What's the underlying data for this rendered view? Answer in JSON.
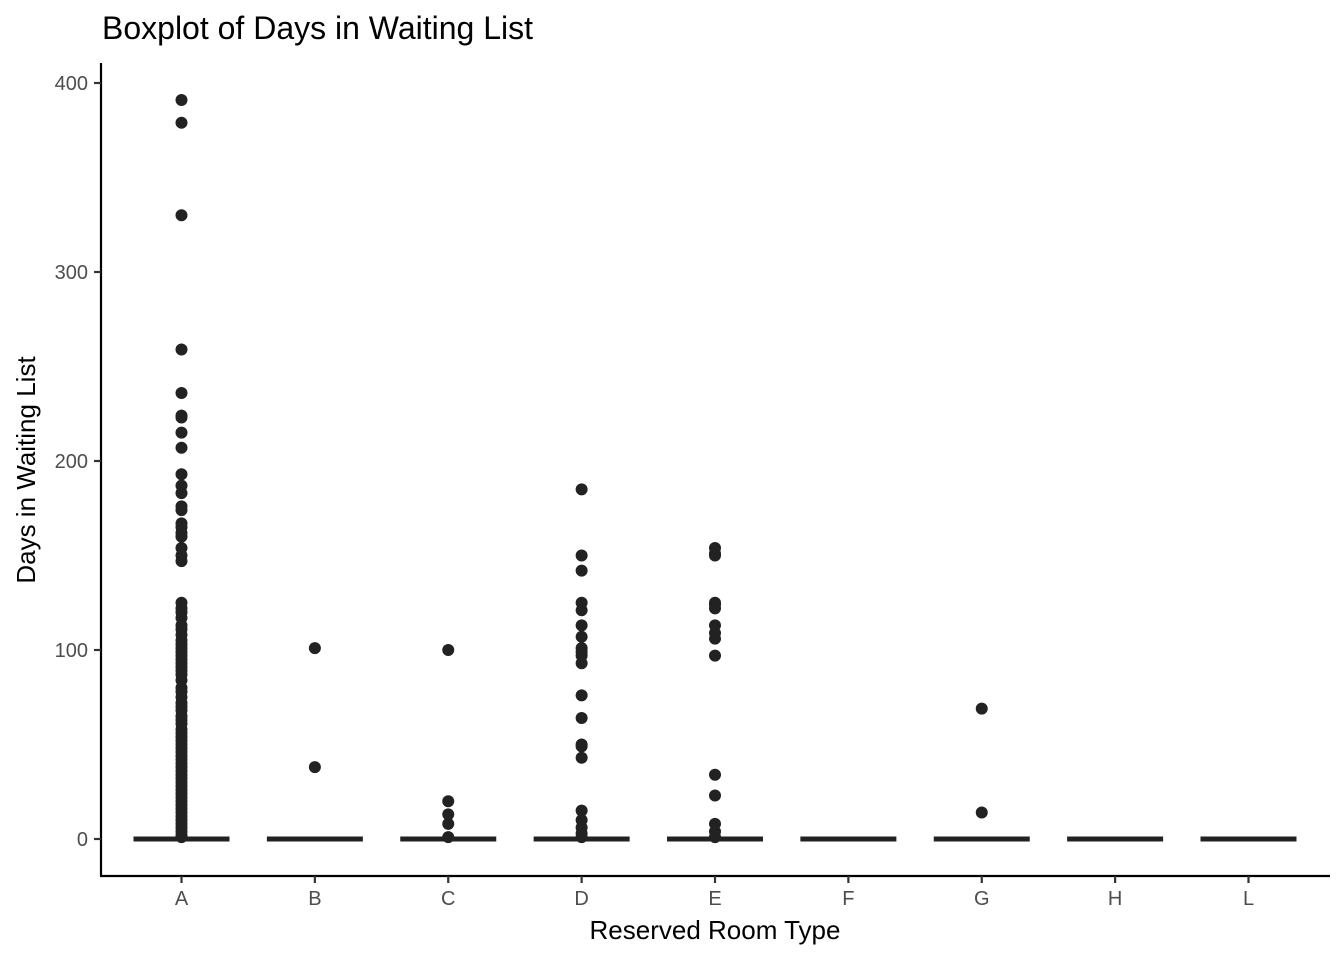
{
  "chart_data": {
    "type": "boxplot",
    "title": "Boxplot of Days in Waiting List",
    "xlabel": "Reserved Room Type",
    "ylabel": "Days in Waiting List",
    "ylim": [
      -19,
      410
    ],
    "yticks": [
      0,
      100,
      200,
      300,
      400
    ],
    "categories": [
      "A",
      "B",
      "C",
      "D",
      "E",
      "F",
      "G",
      "H",
      "L"
    ],
    "boxes": [
      {
        "category": "A",
        "q1": 0,
        "median": 0,
        "q3": 0,
        "whisker_low": 0,
        "whisker_high": 0,
        "outliers": [
          391,
          379,
          330,
          259,
          236,
          224,
          223,
          215,
          207,
          193,
          187,
          183,
          176,
          174,
          167,
          165,
          162,
          160,
          154,
          150,
          147,
          125,
          122,
          120,
          117,
          113,
          111,
          108,
          105,
          103,
          101,
          99,
          97,
          95,
          93,
          91,
          89,
          87,
          84,
          80,
          78,
          75,
          72,
          70,
          68,
          65,
          63,
          61,
          58,
          56,
          54,
          52,
          50,
          48,
          46,
          44,
          42,
          40,
          38,
          36,
          34,
          32,
          30,
          28,
          26,
          24,
          22,
          20,
          18,
          16,
          14,
          12,
          10,
          8,
          6,
          4,
          2,
          1
        ]
      },
      {
        "category": "B",
        "q1": 0,
        "median": 0,
        "q3": 0,
        "whisker_low": 0,
        "whisker_high": 0,
        "outliers": [
          101,
          38
        ]
      },
      {
        "category": "C",
        "q1": 0,
        "median": 0,
        "q3": 0,
        "whisker_low": 0,
        "whisker_high": 0,
        "outliers": [
          100,
          20,
          13,
          8,
          1
        ]
      },
      {
        "category": "D",
        "q1": 0,
        "median": 0,
        "q3": 0,
        "whisker_low": 0,
        "whisker_high": 0,
        "outliers": [
          185,
          150,
          142,
          125,
          121,
          113,
          107,
          101,
          99,
          97,
          93,
          76,
          64,
          50,
          49,
          43,
          15,
          10,
          6,
          3,
          1
        ]
      },
      {
        "category": "E",
        "q1": 0,
        "median": 0,
        "q3": 0,
        "whisker_low": 0,
        "whisker_high": 0,
        "outliers": [
          154,
          151,
          150,
          125,
          124,
          122,
          113,
          109,
          106,
          97,
          34,
          23,
          8,
          4,
          1
        ]
      },
      {
        "category": "F",
        "q1": 0,
        "median": 0,
        "q3": 0,
        "whisker_low": 0,
        "whisker_high": 0,
        "outliers": []
      },
      {
        "category": "G",
        "q1": 0,
        "median": 0,
        "q3": 0,
        "whisker_low": 0,
        "whisker_high": 0,
        "outliers": [
          69,
          14
        ]
      },
      {
        "category": "H",
        "q1": 0,
        "median": 0,
        "q3": 0,
        "whisker_low": 0,
        "whisker_high": 0,
        "outliers": []
      },
      {
        "category": "L",
        "q1": 0,
        "median": 0,
        "q3": 0,
        "whisker_low": 0,
        "whisker_high": 0,
        "outliers": []
      }
    ],
    "grid": false,
    "legend": "none"
  }
}
